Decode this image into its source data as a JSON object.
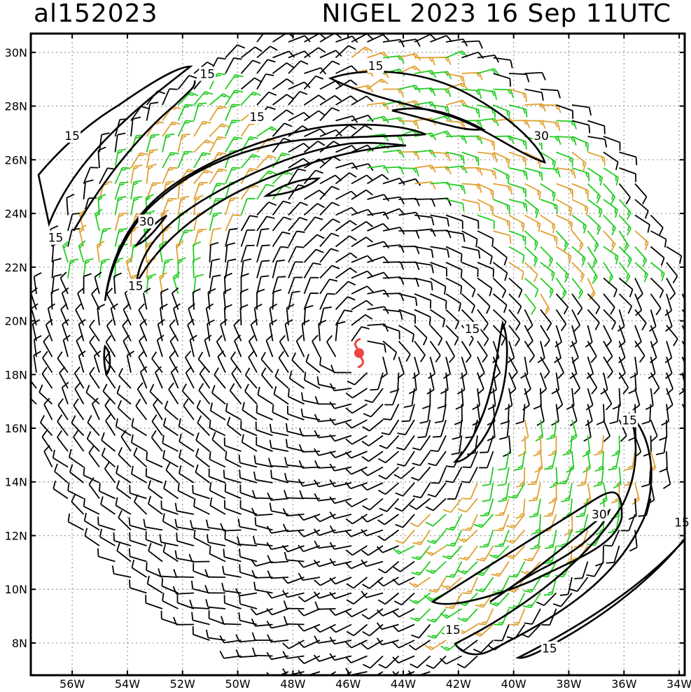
{
  "header": {
    "storm_id": "al152023",
    "storm_title": "NIGEL 2023 16 Sep 11UTC"
  },
  "map": {
    "lon_range": [
      -57.5,
      -33.8
    ],
    "lat_range": [
      6.8,
      30.7
    ],
    "lon_ticks": [
      {
        "value": -56,
        "label": "56W"
      },
      {
        "value": -54,
        "label": "54W"
      },
      {
        "value": -52,
        "label": "52W"
      },
      {
        "value": -50,
        "label": "50W"
      },
      {
        "value": -48,
        "label": "48W"
      },
      {
        "value": -46,
        "label": "46W"
      },
      {
        "value": -44,
        "label": "44W"
      },
      {
        "value": -42,
        "label": "42W"
      },
      {
        "value": -40,
        "label": "40W"
      },
      {
        "value": -38,
        "label": "38W"
      },
      {
        "value": -36,
        "label": "36W"
      },
      {
        "value": -34,
        "label": "34W"
      }
    ],
    "lat_ticks": [
      {
        "value": 30,
        "label": "30N"
      },
      {
        "value": 28,
        "label": "28N"
      },
      {
        "value": 26,
        "label": "26N"
      },
      {
        "value": 24,
        "label": "24N"
      },
      {
        "value": 22,
        "label": "22N"
      },
      {
        "value": 20,
        "label": "20N"
      },
      {
        "value": 18,
        "label": "18N"
      },
      {
        "value": 16,
        "label": "16N"
      },
      {
        "value": 14,
        "label": "14N"
      },
      {
        "value": 12,
        "label": "12N"
      },
      {
        "value": 10,
        "label": "10N"
      },
      {
        "value": 8,
        "label": "8N"
      }
    ],
    "grid": true,
    "storm_center": {
      "lon": -45.6,
      "lat": 18.8
    },
    "colors": {
      "barb_black": "#000000",
      "barb_green": "#22cc22",
      "barb_orange": "#e0a030",
      "storm_symbol": "#ee4444",
      "grid": "#999999"
    },
    "contour_labels": [
      {
        "text": "15",
        "lon": -51.1,
        "lat": 29.2
      },
      {
        "text": "15",
        "lon": -45.0,
        "lat": 29.5
      },
      {
        "text": "15",
        "lon": -56.0,
        "lat": 26.9
      },
      {
        "text": "15",
        "lon": -49.3,
        "lat": 27.6
      },
      {
        "text": "30",
        "lon": -39.0,
        "lat": 26.9
      },
      {
        "text": "30",
        "lon": -53.3,
        "lat": 23.7
      },
      {
        "text": "15",
        "lon": -56.6,
        "lat": 23.1
      },
      {
        "text": "15",
        "lon": -53.7,
        "lat": 21.3
      },
      {
        "text": "15",
        "lon": -41.5,
        "lat": 19.7
      },
      {
        "text": "15",
        "lon": -35.8,
        "lat": 16.3
      },
      {
        "text": "30",
        "lon": -36.9,
        "lat": 12.8
      },
      {
        "text": "15",
        "lon": -33.9,
        "lat": 12.5
      },
      {
        "text": "15",
        "lon": -42.2,
        "lat": 8.5
      },
      {
        "text": "15",
        "lon": -38.7,
        "lat": 7.8
      }
    ]
  }
}
